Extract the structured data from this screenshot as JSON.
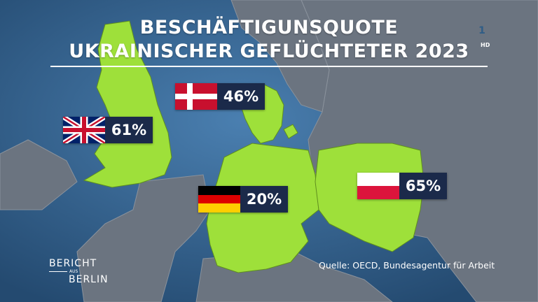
{
  "header": {
    "title_line1": "BESCHÄFTIGUNSQUOTE",
    "title_line2": "UKRAINISCHER GEFLÜCHTETER 2023"
  },
  "countries": [
    {
      "flag": "denmark-flag",
      "value": "46%"
    },
    {
      "flag": "united-kingdom-flag",
      "value": "61%"
    },
    {
      "flag": "germany-flag",
      "value": "20%"
    },
    {
      "flag": "poland-flag",
      "value": "65%"
    }
  ],
  "source": "Quelle: OECD, Bundesagentur für Arbeit",
  "show_logo": {
    "line1": "BERICHT",
    "small": "AUS",
    "line2": "BERLIN"
  },
  "channel": {
    "logo": "ard-1-logo",
    "badge": "HD"
  },
  "colors": {
    "sea": "#2f5d86",
    "land": "#6b7480",
    "highlight": "#9ee03a",
    "label_bg": "#1b2a4a"
  }
}
